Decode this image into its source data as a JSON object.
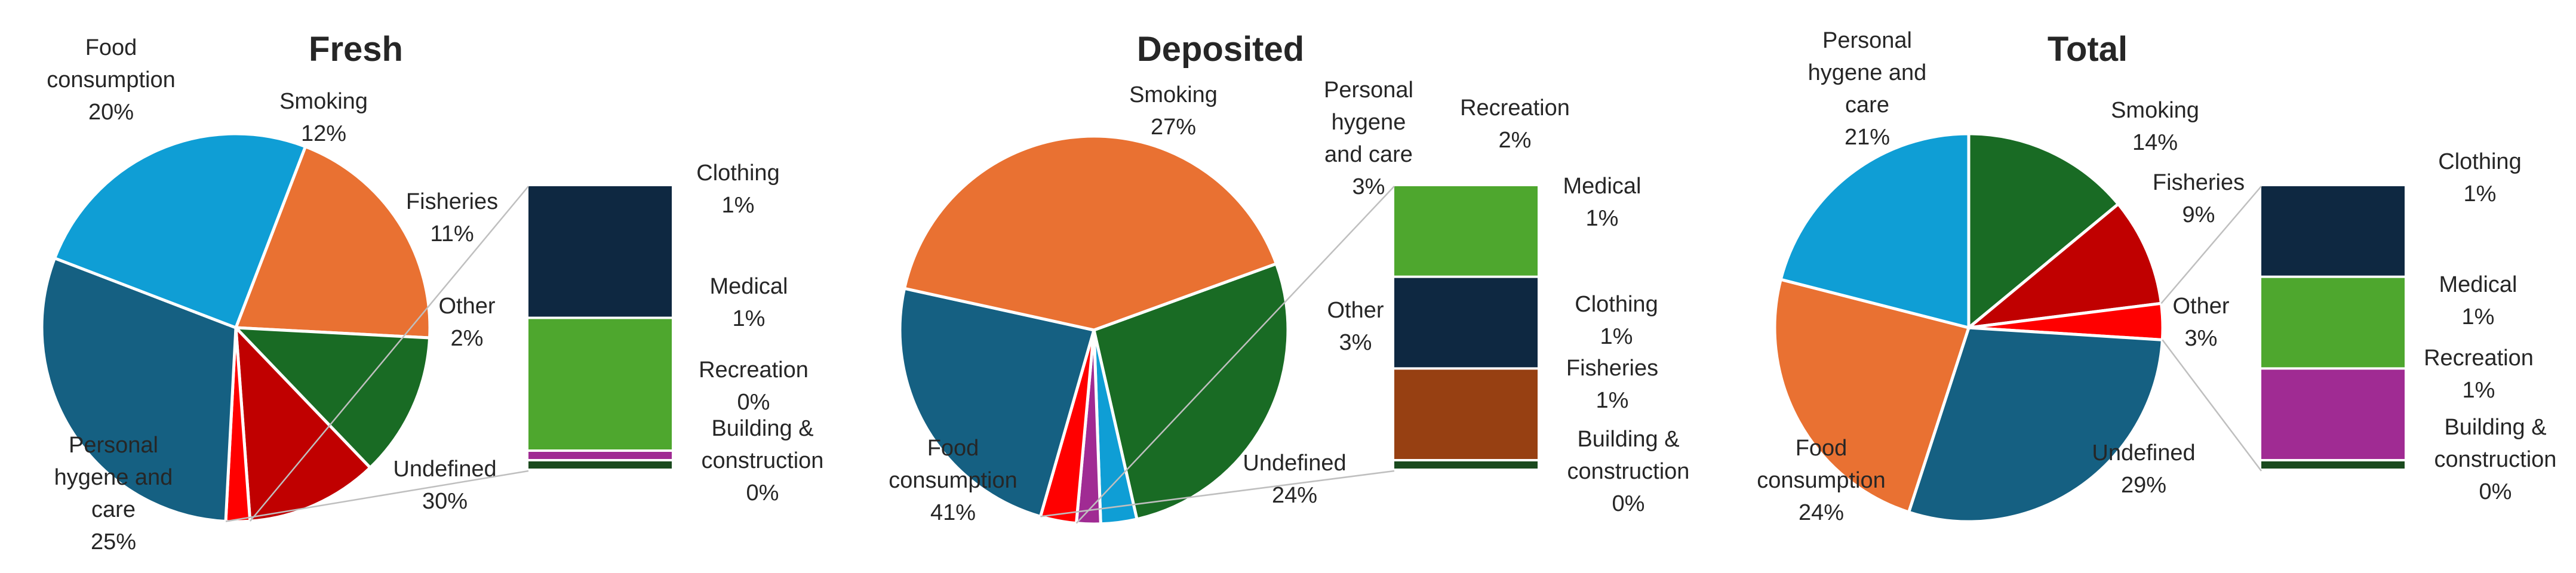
{
  "colors": {
    "Food consumption": "#E97132",
    "Smoking": "#196B24",
    "Fisheries": "#C00000",
    "Other": "#FF0000",
    "Undefined": "#156082",
    "Personal hygene and care": "#0F9ED5",
    "Clothing": "#0E2841",
    "Medical": "#4EA72E",
    "Recreation": "#A02B93",
    "Building & construction": "#1A4A1E",
    "Fisheries-sub": "#974012"
  },
  "chart_data": [
    {
      "type": "bar-of-pie",
      "title": "Fresh",
      "pie": [
        {
          "category": "Food consumption",
          "label": [
            "Food",
            "consumption",
            "20%"
          ],
          "value": 20
        },
        {
          "category": "Smoking",
          "label": [
            "Smoking",
            "12%"
          ],
          "value": 12
        },
        {
          "category": "Fisheries",
          "label": [
            "Fisheries",
            "11%"
          ],
          "value": 11
        },
        {
          "category": "Other",
          "label": [
            "Other",
            "2%"
          ],
          "value": 2
        },
        {
          "category": "Undefined",
          "label": [
            "Undefined",
            "30%"
          ],
          "value": 30
        },
        {
          "category": "Personal hygene and care",
          "label": [
            "Personal",
            "hygene and",
            "care",
            "25%"
          ],
          "value": 25
        }
      ],
      "bar": [
        {
          "category": "Clothing",
          "label": [
            "Clothing",
            "1%"
          ],
          "value": 1
        },
        {
          "category": "Medical",
          "label": [
            "Medical",
            "1%"
          ],
          "value": 1
        },
        {
          "category": "Recreation",
          "label": [
            "Recreation",
            "0%"
          ],
          "value": 0
        },
        {
          "category": "Building & construction",
          "label": [
            "Building &",
            "construction",
            "0%"
          ],
          "value": 0
        }
      ]
    },
    {
      "type": "bar-of-pie",
      "title": "Deposited",
      "pie": [
        {
          "category": "Smoking",
          "label": [
            "Smoking",
            "27%"
          ],
          "value": 27
        },
        {
          "category": "Personal hygene and care",
          "label": [
            "Personal",
            "hygene",
            "and care",
            "3%"
          ],
          "value": 3
        },
        {
          "category": "Recreation",
          "label": [
            "Recreation",
            "2%"
          ],
          "value": 2
        },
        {
          "category": "Other",
          "label": [
            "Other",
            "3%"
          ],
          "value": 3
        },
        {
          "category": "Undefined",
          "label": [
            "Undefined",
            "24%"
          ],
          "value": 24
        },
        {
          "category": "Food consumption",
          "label": [
            "Food",
            "consumption",
            "41%"
          ],
          "value": 41
        }
      ],
      "bar": [
        {
          "category": "Medical",
          "label": [
            "Medical",
            "1%"
          ],
          "value": 1
        },
        {
          "category": "Clothing",
          "label": [
            "Clothing",
            "1%"
          ],
          "value": 1
        },
        {
          "category": "Fisheries",
          "label": [
            "Fisheries",
            "1%"
          ],
          "value": 1
        },
        {
          "category": "Building & construction",
          "label": [
            "Building &",
            "construction",
            "0%"
          ],
          "value": 0
        }
      ]
    },
    {
      "type": "bar-of-pie",
      "title": "Total",
      "pie": [
        {
          "category": "Smoking",
          "label": [
            "Smoking",
            "14%"
          ],
          "value": 14
        },
        {
          "category": "Fisheries",
          "label": [
            "Fisheries",
            "9%"
          ],
          "value": 9
        },
        {
          "category": "Other",
          "label": [
            "Other",
            "3%"
          ],
          "value": 3
        },
        {
          "category": "Undefined",
          "label": [
            "Undefined",
            "29%"
          ],
          "value": 29
        },
        {
          "category": "Food consumption",
          "label": [
            "Food",
            "consumption",
            "24%"
          ],
          "value": 24
        },
        {
          "category": "Personal hygene and care",
          "label": [
            "Personal",
            "hygene and",
            "care",
            "21%"
          ],
          "value": 21
        }
      ],
      "bar": [
        {
          "category": "Clothing",
          "label": [
            "Clothing",
            "1%"
          ],
          "value": 1
        },
        {
          "category": "Medical",
          "label": [
            "Medical",
            "1%"
          ],
          "value": 1
        },
        {
          "category": "Recreation",
          "label": [
            "Recreation",
            "1%"
          ],
          "value": 1
        },
        {
          "category": "Building & construction",
          "label": [
            "Building &",
            "construction",
            "0%"
          ],
          "value": 0
        }
      ]
    }
  ]
}
